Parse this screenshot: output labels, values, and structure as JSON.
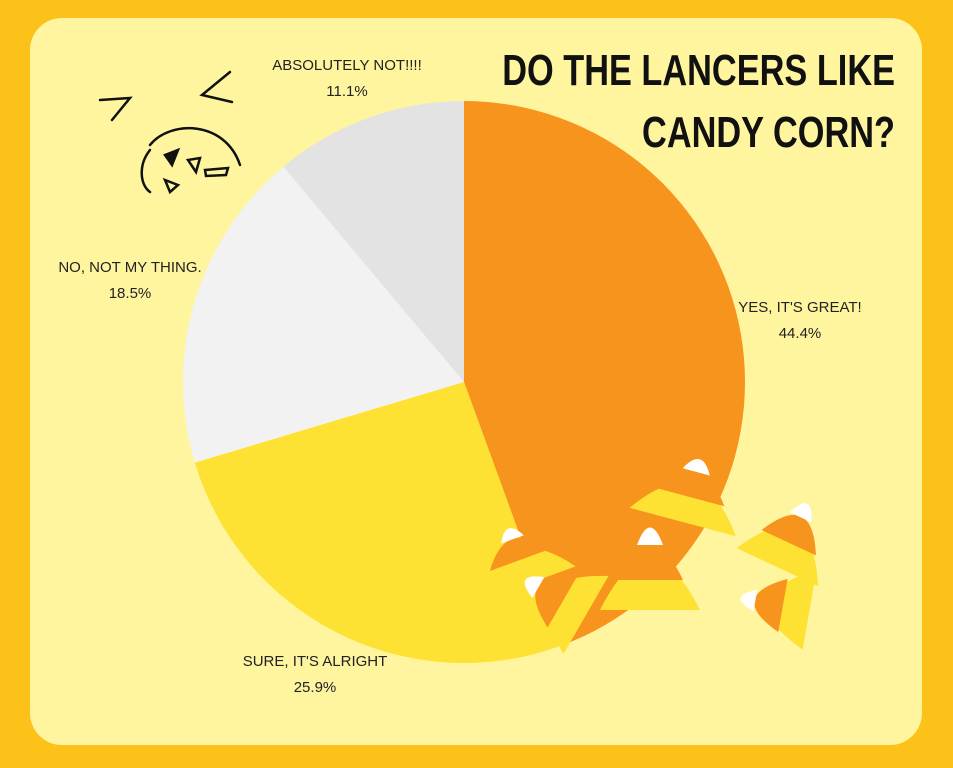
{
  "chart_data": {
    "type": "pie",
    "title": "DO THE LANCERS LIKE CANDY CORN?",
    "categories": [
      "YES, IT'S GREAT!",
      "SURE, IT'S ALRIGHT",
      "NO, NOT MY THING.",
      "ABSOLUTELY NOT!!!!"
    ],
    "values": [
      44.4,
      25.9,
      18.5,
      11.1
    ],
    "value_labels": [
      "44.4%",
      "25.9%",
      "18.5%",
      "11.1%"
    ],
    "colors": [
      "#f7941d",
      "#fde234",
      "#f2f2f2",
      "#e4e3e3"
    ]
  }
}
